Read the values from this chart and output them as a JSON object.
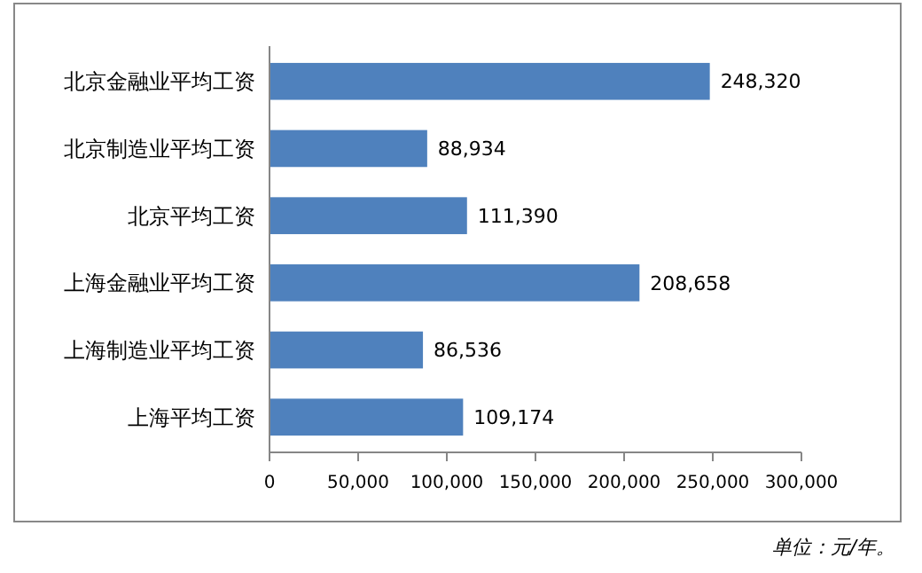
{
  "chart_data": {
    "type": "bar",
    "orientation": "horizontal",
    "categories": [
      "北京金融业平均工资",
      "北京制造业平均工资",
      "北京平均工资",
      "上海金融业平均工资",
      "上海制造业平均工资",
      "上海平均工资"
    ],
    "values": [
      248320,
      88934,
      111390,
      208658,
      86536,
      109174
    ],
    "value_labels": [
      "248,320",
      "88,934",
      "111,390",
      "208,658",
      "86,536",
      "109,174"
    ],
    "color": "#4f81bd",
    "xlim": [
      0,
      300000
    ],
    "xticks": [
      0,
      {
        "value": 50000,
        "label": "50,000"
      },
      {
        "value": 100000,
        "label": "100,000"
      },
      {
        "value": 150000,
        "label": "150,000"
      },
      {
        "value": 200000,
        "label": "200,000"
      },
      {
        "value": 250000,
        "label": "250,000"
      },
      {
        "value": 300000,
        "label": "300,000"
      }
    ],
    "grid": false,
    "annotations": [
      "单位：元/年。"
    ]
  }
}
